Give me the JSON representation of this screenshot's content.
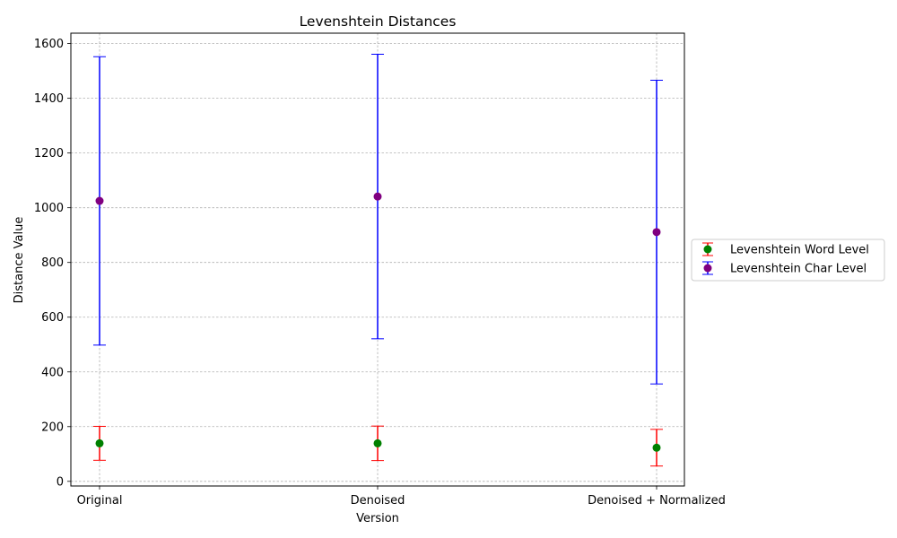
{
  "chart_data": {
    "type": "scatter",
    "title": "Levenshtein Distances",
    "xlabel": "Version",
    "ylabel": "Distance Value",
    "categories": [
      "Original",
      "Denoised",
      "Denoised + Normalized"
    ],
    "ylim": [
      -17,
      1638
    ],
    "yticks": [
      0,
      200,
      400,
      600,
      800,
      1000,
      1200,
      1400,
      1600
    ],
    "grid": true,
    "legend_position": "center-right, outside plot",
    "series": [
      {
        "name": "Levenshtein Word Level",
        "marker_color": "#008000",
        "error_color": "#ff0000",
        "values": [
          139,
          139,
          123
        ],
        "error": [
          62,
          63,
          67
        ]
      },
      {
        "name": "Levenshtein Char Level",
        "marker_color": "#800080",
        "error_color": "#0000ff",
        "values": [
          1025,
          1041,
          911
        ],
        "error": [
          527,
          520,
          555
        ]
      }
    ]
  }
}
